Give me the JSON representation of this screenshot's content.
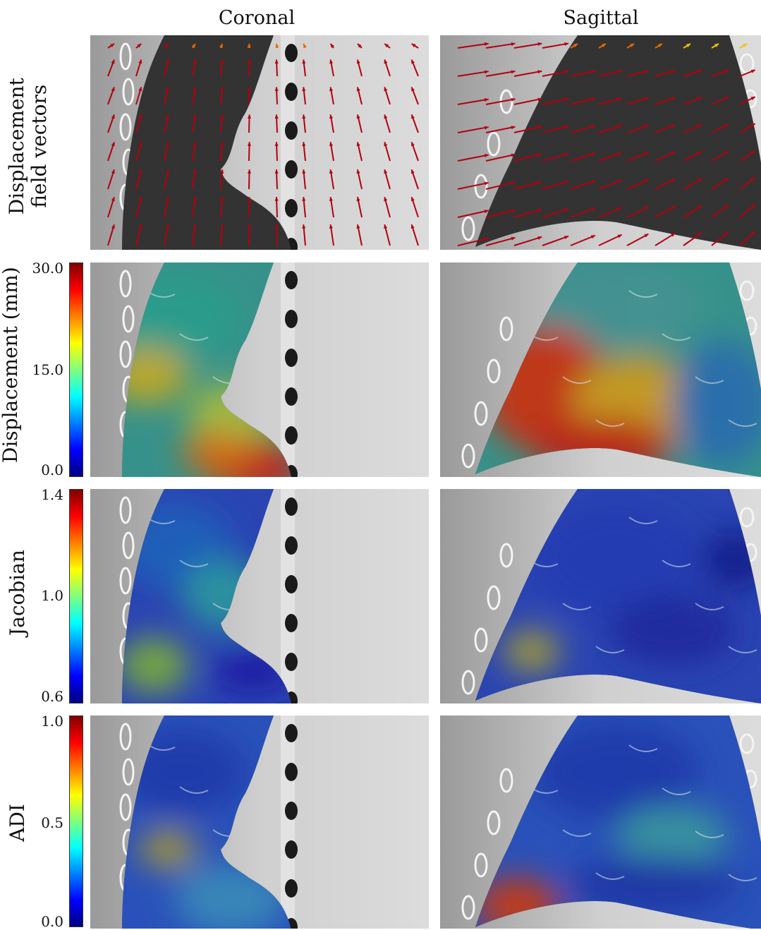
{
  "columns": {
    "coronal": "Coronal",
    "sagittal": "Sagittal"
  },
  "rows": {
    "displacement_vectors": {
      "label_line1": "Displacement",
      "label_line2": "field vectors"
    },
    "displacement": {
      "label": "Displacement (mm)",
      "ticks": [
        "30.0",
        "15.0",
        "0.0"
      ]
    },
    "jacobian": {
      "label": "Jacobian",
      "ticks": [
        "1.4",
        "1.0",
        "0.6"
      ]
    },
    "adi": {
      "label": "ADI",
      "ticks": [
        "1.0",
        "0.5",
        "0.0"
      ]
    }
  },
  "colormap": "jet",
  "colors": {
    "arrow_red": "#b3000f",
    "arrow_orange": "#e86a00",
    "arrow_yellow": "#f2c400"
  }
}
